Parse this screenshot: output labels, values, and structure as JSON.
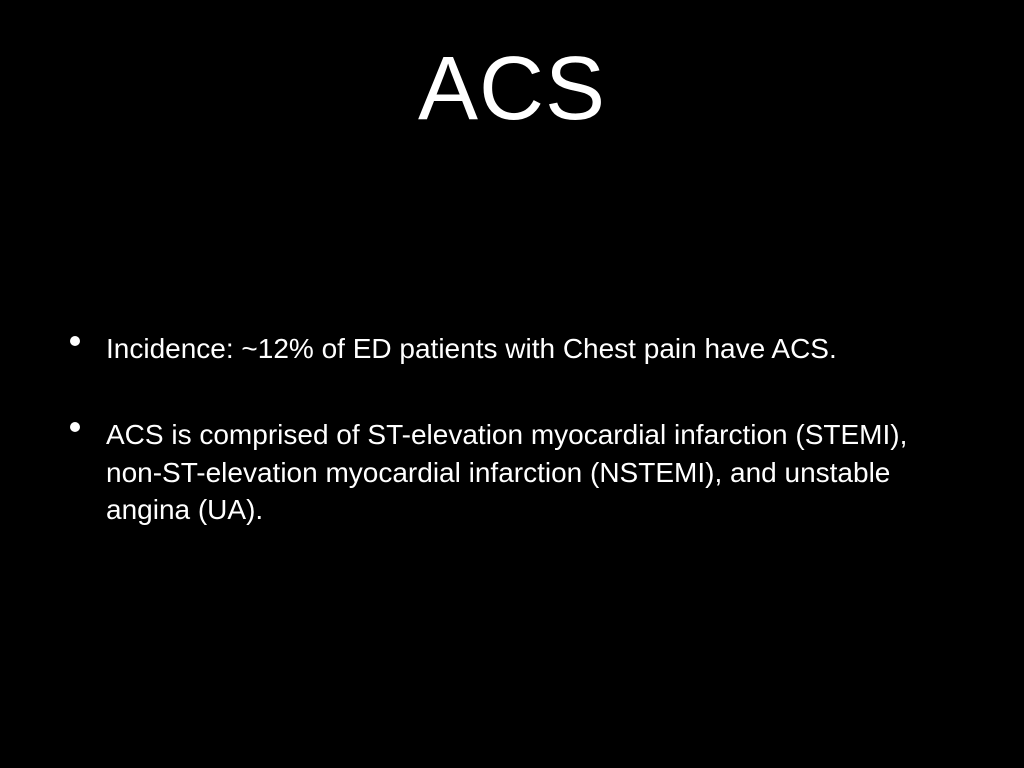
{
  "slide": {
    "title": "ACS",
    "bullets": [
      "Incidence: ~12% of ED patients with Chest pain have ACS.",
      "ACS is comprised of ST-elevation myocardial infarction (STEMI), non-ST-elevation myocardial infarction (NSTEMI), and unstable angina (UA)."
    ],
    "background_color": "#000000",
    "text_color": "#ffffff",
    "title_fontsize": 90,
    "body_fontsize": 28
  }
}
